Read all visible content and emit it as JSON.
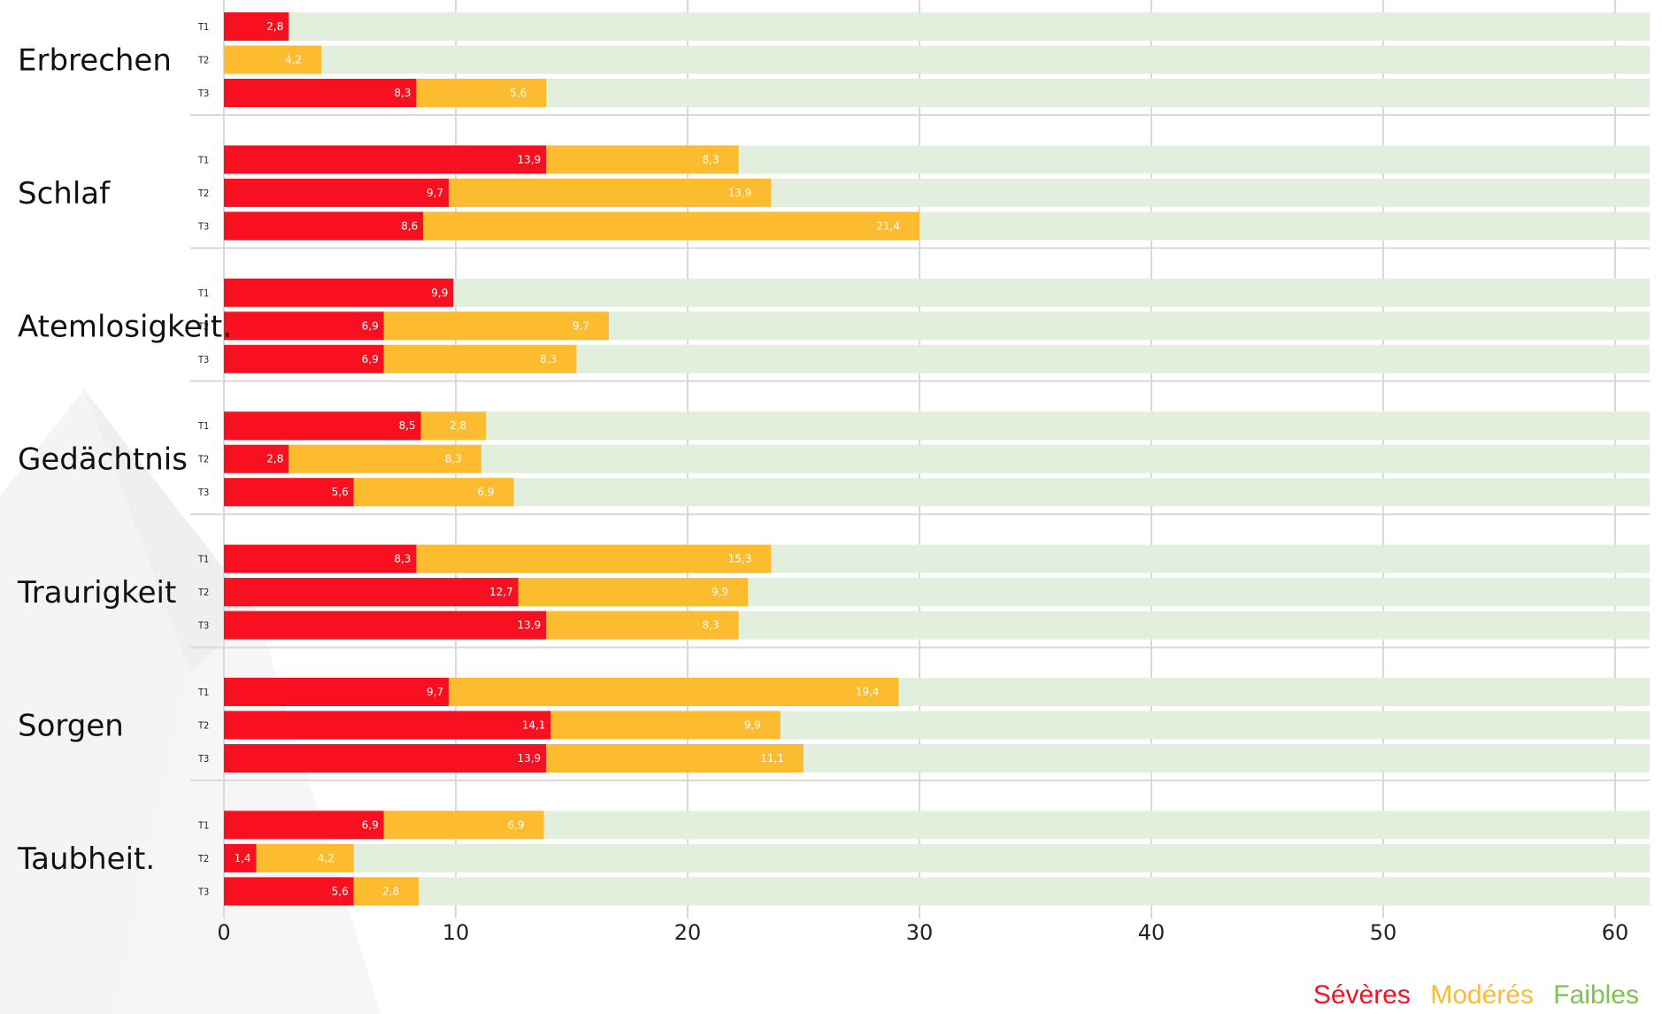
{
  "chart_data": {
    "type": "bar",
    "orientation": "horizontal",
    "stacked": true,
    "xlim": [
      0,
      61.5
    ],
    "x_ticks": [
      "0",
      "10",
      "20",
      "30",
      "40",
      "50",
      "60"
    ],
    "grid": true,
    "legend_position": "bottom-right",
    "colors": {
      "severe": "#f91020",
      "moderate": "#fdbb30",
      "faible": "#e1efdc",
      "grid": "#d9d9d9"
    },
    "legend": [
      {
        "key": "severe",
        "label": "Sévères",
        "color": "#f91020"
      },
      {
        "key": "moderate",
        "label": "Modérés",
        "color": "#fdbb30"
      },
      {
        "key": "faible",
        "label": "Faibles",
        "color": "#7cc350"
      }
    ],
    "groups": [
      {
        "category": "Erbrechen",
        "rows": [
          {
            "label": "T1",
            "severe": 2.8,
            "severe_text": "2,8",
            "moderate": null,
            "moderate_text": ""
          },
          {
            "label": "T2",
            "severe": null,
            "severe_text": "",
            "moderate": 4.2,
            "moderate_text": "4,2"
          },
          {
            "label": "T3",
            "severe": 8.3,
            "severe_text": "8,3",
            "moderate": 5.6,
            "moderate_text": "5,6"
          }
        ]
      },
      {
        "category": "Schlaf",
        "rows": [
          {
            "label": "T1",
            "severe": 13.9,
            "severe_text": "13,9",
            "moderate": 8.3,
            "moderate_text": "8,3"
          },
          {
            "label": "T2",
            "severe": 9.7,
            "severe_text": "9,7",
            "moderate": 13.9,
            "moderate_text": "13,9"
          },
          {
            "label": "T3",
            "severe": 8.6,
            "severe_text": "8,6",
            "moderate": 21.4,
            "moderate_text": "21,4"
          }
        ]
      },
      {
        "category": "Atemlosigkeit.",
        "rows": [
          {
            "label": "T1",
            "severe": 9.9,
            "severe_text": "9,9",
            "moderate": null,
            "moderate_text": ""
          },
          {
            "label": "T2",
            "severe": 6.9,
            "severe_text": "6,9",
            "moderate": 9.7,
            "moderate_text": "9,7"
          },
          {
            "label": "T3",
            "severe": 6.9,
            "severe_text": "6,9",
            "moderate": 8.3,
            "moderate_text": "8,3"
          }
        ]
      },
      {
        "category": "Gedächtnis",
        "rows": [
          {
            "label": "T1",
            "severe": 8.5,
            "severe_text": "8,5",
            "moderate": 2.8,
            "moderate_text": "2,8"
          },
          {
            "label": "T2",
            "severe": 2.8,
            "severe_text": "2,8",
            "moderate": 8.3,
            "moderate_text": "8,3"
          },
          {
            "label": "T3",
            "severe": 5.6,
            "severe_text": "5,6",
            "moderate": 6.9,
            "moderate_text": "6,9"
          }
        ]
      },
      {
        "category": "Traurigkeit",
        "rows": [
          {
            "label": "T1",
            "severe": 8.3,
            "severe_text": "8,3",
            "moderate": 15.3,
            "moderate_text": "15,3"
          },
          {
            "label": "T2",
            "severe": 12.7,
            "severe_text": "12,7",
            "moderate": 9.9,
            "moderate_text": "9,9"
          },
          {
            "label": "T3",
            "severe": 13.9,
            "severe_text": "13,9",
            "moderate": 8.3,
            "moderate_text": "8,3"
          }
        ]
      },
      {
        "category": "Sorgen",
        "rows": [
          {
            "label": "T1",
            "severe": 9.7,
            "severe_text": "9,7",
            "moderate": 19.4,
            "moderate_text": "19,4"
          },
          {
            "label": "T2",
            "severe": 14.1,
            "severe_text": "14,1",
            "moderate": 9.9,
            "moderate_text": "9,9"
          },
          {
            "label": "T3",
            "severe": 13.9,
            "severe_text": "13,9",
            "moderate": 11.1,
            "moderate_text": "11,1"
          }
        ]
      },
      {
        "category": "Taubheit.",
        "rows": [
          {
            "label": "T1",
            "severe": 6.9,
            "severe_text": "6,9",
            "moderate": 6.9,
            "moderate_text": "6,9"
          },
          {
            "label": "T2",
            "severe": 1.4,
            "severe_text": "1,4",
            "moderate": 4.2,
            "moderate_text": "4,2"
          },
          {
            "label": "T3",
            "severe": 5.6,
            "severe_text": "5,6",
            "moderate": 2.8,
            "moderate_text": "2,8"
          }
        ]
      }
    ]
  }
}
